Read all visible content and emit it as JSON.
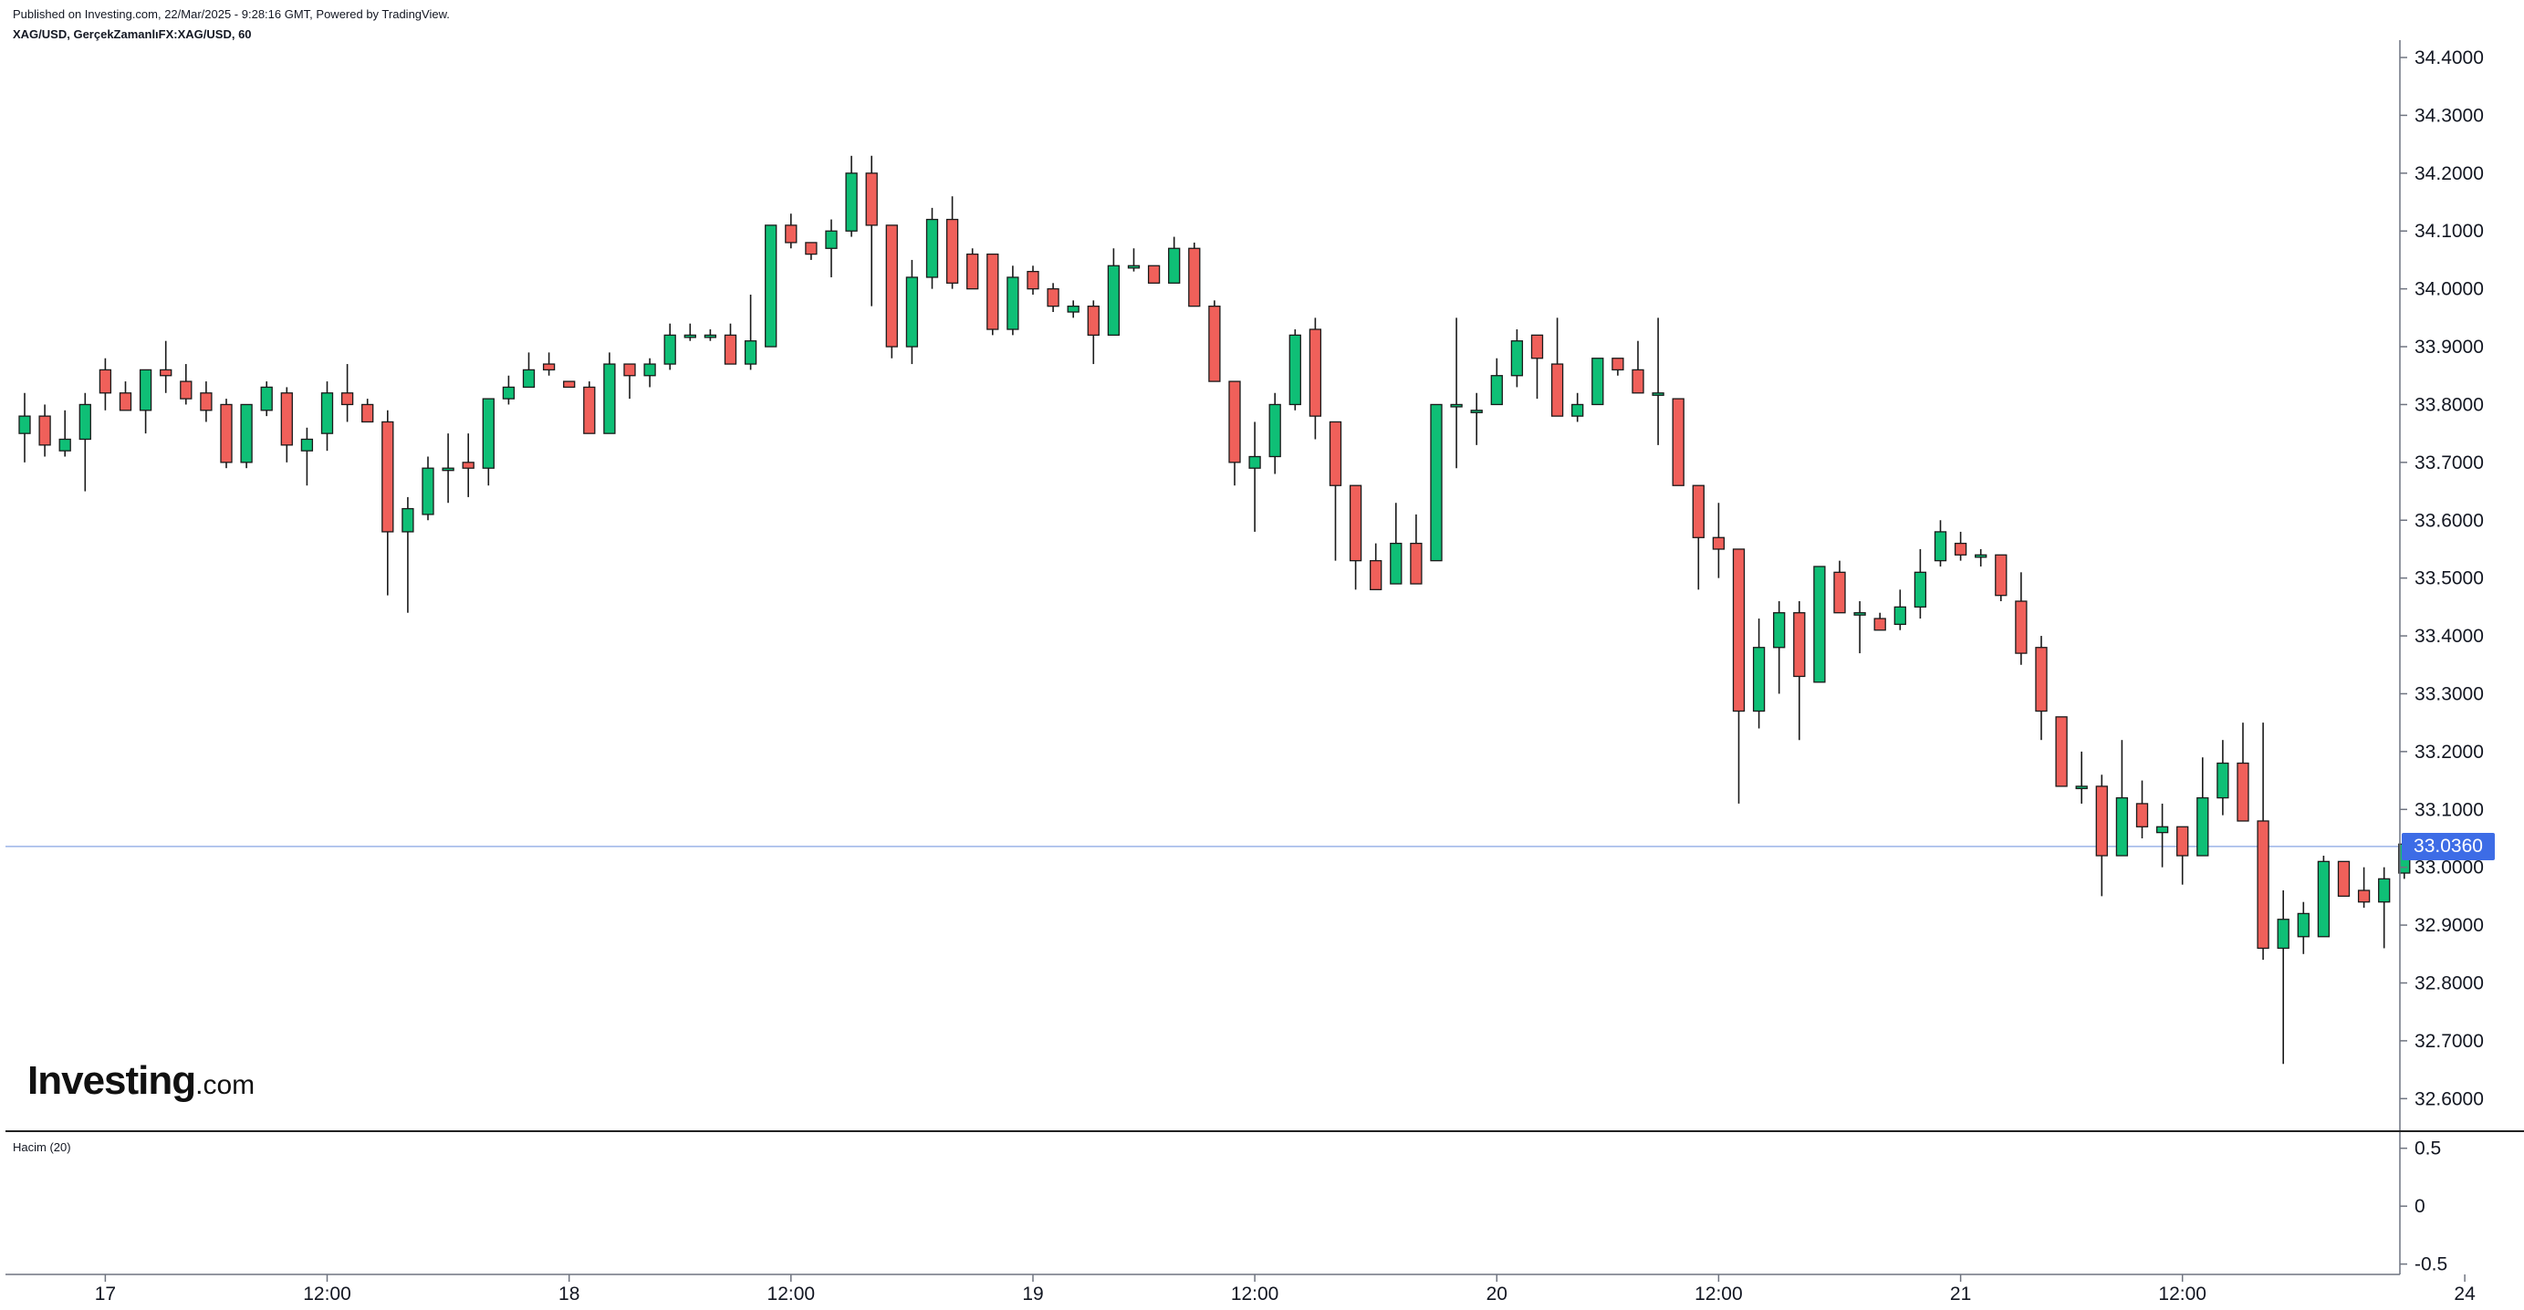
{
  "header": {
    "published": "Published on Investing.com, 22/Mar/2025 - 9:28:16 GMT, Powered by TradingView.",
    "symbol_line": "XAG/USD, GerçekZamanlıFX:XAG/USD, 60"
  },
  "volume_label": "Hacim (20)",
  "logo": {
    "main": "Investing",
    "suffix": ".com"
  },
  "colors": {
    "up": "#0fbf76",
    "down": "#f0605a",
    "wick": "#1a1a1a",
    "last_price": "#3d6ce6"
  },
  "chart_data": {
    "type": "candlestick",
    "ylim": [
      32.55,
      34.43
    ],
    "y_ticks": [
      "32.6000",
      "32.7000",
      "32.8000",
      "32.9000",
      "33.0000",
      "33.1000",
      "33.2000",
      "33.3000",
      "33.4000",
      "33.5000",
      "33.6000",
      "33.7000",
      "33.8000",
      "33.9000",
      "34.0000",
      "34.1000",
      "34.2000",
      "34.3000",
      "34.4000"
    ],
    "x_ticks": [
      {
        "label": "17",
        "i": 4
      },
      {
        "label": "12:00",
        "i": 15
      },
      {
        "label": "18",
        "i": 27
      },
      {
        "label": "12:00",
        "i": 38
      },
      {
        "label": "19",
        "i": 50
      },
      {
        "label": "12:00",
        "i": 61
      },
      {
        "label": "20",
        "i": 73
      },
      {
        "label": "12:00",
        "i": 84
      },
      {
        "label": "21",
        "i": 96
      },
      {
        "label": "12:00",
        "i": 107
      },
      {
        "label": "24",
        "i": 121
      }
    ],
    "last_price": 33.036,
    "last_price_label": "33.0360",
    "volume_ticks": [
      "0.5",
      "0",
      "-0.5"
    ],
    "volume_ylim": [
      -0.55,
      0.6
    ],
    "candles": [
      [
        33.75,
        33.78,
        33.7,
        33.82
      ],
      [
        33.78,
        33.73,
        33.71,
        33.8
      ],
      [
        33.72,
        33.74,
        33.71,
        33.79
      ],
      [
        33.74,
        33.8,
        33.65,
        33.82
      ],
      [
        33.86,
        33.82,
        33.79,
        33.88
      ],
      [
        33.82,
        33.79,
        33.79,
        33.84
      ],
      [
        33.79,
        33.86,
        33.75,
        33.86
      ],
      [
        33.86,
        33.85,
        33.82,
        33.91
      ],
      [
        33.84,
        33.81,
        33.8,
        33.87
      ],
      [
        33.82,
        33.79,
        33.77,
        33.84
      ],
      [
        33.8,
        33.7,
        33.69,
        33.81
      ],
      [
        33.7,
        33.8,
        33.69,
        33.8
      ],
      [
        33.79,
        33.83,
        33.78,
        33.84
      ],
      [
        33.82,
        33.73,
        33.7,
        33.83
      ],
      [
        33.72,
        33.74,
        33.66,
        33.76
      ],
      [
        33.75,
        33.82,
        33.72,
        33.84
      ],
      [
        33.82,
        33.8,
        33.77,
        33.87
      ],
      [
        33.8,
        33.77,
        33.77,
        33.81
      ],
      [
        33.77,
        33.58,
        33.47,
        33.79
      ],
      [
        33.58,
        33.62,
        33.44,
        33.64
      ],
      [
        33.61,
        33.69,
        33.6,
        33.71
      ],
      [
        33.69,
        33.69,
        33.63,
        33.75
      ],
      [
        33.7,
        33.69,
        33.64,
        33.75
      ],
      [
        33.69,
        33.81,
        33.66,
        33.81
      ],
      [
        33.81,
        33.83,
        33.8,
        33.85
      ],
      [
        33.83,
        33.86,
        33.83,
        33.89
      ],
      [
        33.87,
        33.86,
        33.85,
        33.89
      ],
      [
        33.84,
        33.83,
        33.83,
        33.84
      ],
      [
        33.83,
        33.75,
        33.75,
        33.84
      ],
      [
        33.75,
        33.87,
        33.75,
        33.89
      ],
      [
        33.87,
        33.85,
        33.81,
        33.87
      ],
      [
        33.85,
        33.87,
        33.83,
        33.88
      ],
      [
        33.87,
        33.92,
        33.86,
        33.94
      ],
      [
        33.92,
        33.92,
        33.91,
        33.94
      ],
      [
        33.92,
        33.92,
        33.91,
        33.93
      ],
      [
        33.92,
        33.87,
        33.87,
        33.94
      ],
      [
        33.87,
        33.91,
        33.86,
        33.99
      ],
      [
        33.9,
        34.11,
        33.9,
        34.11
      ],
      [
        34.11,
        34.08,
        34.07,
        34.13
      ],
      [
        34.08,
        34.06,
        34.05,
        34.08
      ],
      [
        34.07,
        34.1,
        34.02,
        34.12
      ],
      [
        34.1,
        34.2,
        34.09,
        34.23
      ],
      [
        34.2,
        34.11,
        33.97,
        34.23
      ],
      [
        34.11,
        33.9,
        33.88,
        34.11
      ],
      [
        33.9,
        34.02,
        33.87,
        34.05
      ],
      [
        34.02,
        34.12,
        34.0,
        34.14
      ],
      [
        34.12,
        34.01,
        34.0,
        34.16
      ],
      [
        34.06,
        34.0,
        34.0,
        34.07
      ],
      [
        34.06,
        33.93,
        33.92,
        34.06
      ],
      [
        33.93,
        34.02,
        33.92,
        34.04
      ],
      [
        34.03,
        34.0,
        33.99,
        34.04
      ],
      [
        34.0,
        33.97,
        33.96,
        34.01
      ],
      [
        33.96,
        33.97,
        33.95,
        33.98
      ],
      [
        33.97,
        33.92,
        33.87,
        33.98
      ],
      [
        33.92,
        34.04,
        33.92,
        34.07
      ],
      [
        34.04,
        34.04,
        34.03,
        34.07
      ],
      [
        34.04,
        34.01,
        34.01,
        34.04
      ],
      [
        34.01,
        34.07,
        34.01,
        34.09
      ],
      [
        34.07,
        33.97,
        33.97,
        34.08
      ],
      [
        33.97,
        33.84,
        33.84,
        33.98
      ],
      [
        33.84,
        33.7,
        33.66,
        33.84
      ],
      [
        33.69,
        33.71,
        33.58,
        33.77
      ],
      [
        33.71,
        33.8,
        33.68,
        33.82
      ],
      [
        33.8,
        33.92,
        33.79,
        33.93
      ],
      [
        33.93,
        33.78,
        33.74,
        33.95
      ],
      [
        33.77,
        33.66,
        33.53,
        33.77
      ],
      [
        33.66,
        33.53,
        33.48,
        33.66
      ],
      [
        33.53,
        33.48,
        33.48,
        33.56
      ],
      [
        33.49,
        33.56,
        33.49,
        33.63
      ],
      [
        33.56,
        33.49,
        33.49,
        33.61
      ],
      [
        33.53,
        33.8,
        33.53,
        33.8
      ],
      [
        33.8,
        33.8,
        33.69,
        33.95
      ],
      [
        33.79,
        33.79,
        33.73,
        33.82
      ],
      [
        33.8,
        33.85,
        33.8,
        33.88
      ],
      [
        33.85,
        33.91,
        33.83,
        33.93
      ],
      [
        33.92,
        33.88,
        33.81,
        33.92
      ],
      [
        33.87,
        33.78,
        33.78,
        33.95
      ],
      [
        33.78,
        33.8,
        33.77,
        33.82
      ],
      [
        33.8,
        33.88,
        33.8,
        33.88
      ],
      [
        33.88,
        33.86,
        33.85,
        33.88
      ],
      [
        33.86,
        33.82,
        33.82,
        33.91
      ],
      [
        33.82,
        33.82,
        33.73,
        33.95
      ],
      [
        33.81,
        33.66,
        33.66,
        33.81
      ],
      [
        33.66,
        33.57,
        33.48,
        33.66
      ],
      [
        33.57,
        33.55,
        33.5,
        33.63
      ],
      [
        33.55,
        33.27,
        33.11,
        33.55
      ],
      [
        33.27,
        33.38,
        33.24,
        33.43
      ],
      [
        33.38,
        33.44,
        33.3,
        33.46
      ],
      [
        33.44,
        33.33,
        33.22,
        33.46
      ],
      [
        33.32,
        33.52,
        33.32,
        33.52
      ],
      [
        33.51,
        33.44,
        33.44,
        33.53
      ],
      [
        33.44,
        33.44,
        33.37,
        33.46
      ],
      [
        33.43,
        33.41,
        33.41,
        33.44
      ],
      [
        33.42,
        33.45,
        33.41,
        33.48
      ],
      [
        33.45,
        33.51,
        33.43,
        33.55
      ],
      [
        33.53,
        33.58,
        33.52,
        33.6
      ],
      [
        33.56,
        33.54,
        33.53,
        33.58
      ],
      [
        33.54,
        33.54,
        33.52,
        33.55
      ],
      [
        33.54,
        33.47,
        33.46,
        33.54
      ],
      [
        33.46,
        33.37,
        33.35,
        33.51
      ],
      [
        33.38,
        33.27,
        33.22,
        33.4
      ],
      [
        33.26,
        33.14,
        33.14,
        33.26
      ],
      [
        33.14,
        33.14,
        33.11,
        33.2
      ],
      [
        33.14,
        33.02,
        32.95,
        33.16
      ],
      [
        33.02,
        33.12,
        33.02,
        33.22
      ],
      [
        33.11,
        33.07,
        33.05,
        33.15
      ],
      [
        33.06,
        33.07,
        33.0,
        33.11
      ],
      [
        33.07,
        33.02,
        32.97,
        33.07
      ],
      [
        33.02,
        33.12,
        33.02,
        33.19
      ],
      [
        33.12,
        33.18,
        33.09,
        33.22
      ],
      [
        33.18,
        33.08,
        33.08,
        33.25
      ],
      [
        33.08,
        32.86,
        32.84,
        33.25
      ],
      [
        32.86,
        32.91,
        32.66,
        32.96
      ],
      [
        32.88,
        32.92,
        32.85,
        32.94
      ],
      [
        32.88,
        33.01,
        32.88,
        33.02
      ],
      [
        33.01,
        32.95,
        32.95,
        33.01
      ],
      [
        32.96,
        32.94,
        32.93,
        33.0
      ],
      [
        32.94,
        32.98,
        32.86,
        33.0
      ],
      [
        32.99,
        33.04,
        32.98,
        33.05
      ]
    ]
  }
}
